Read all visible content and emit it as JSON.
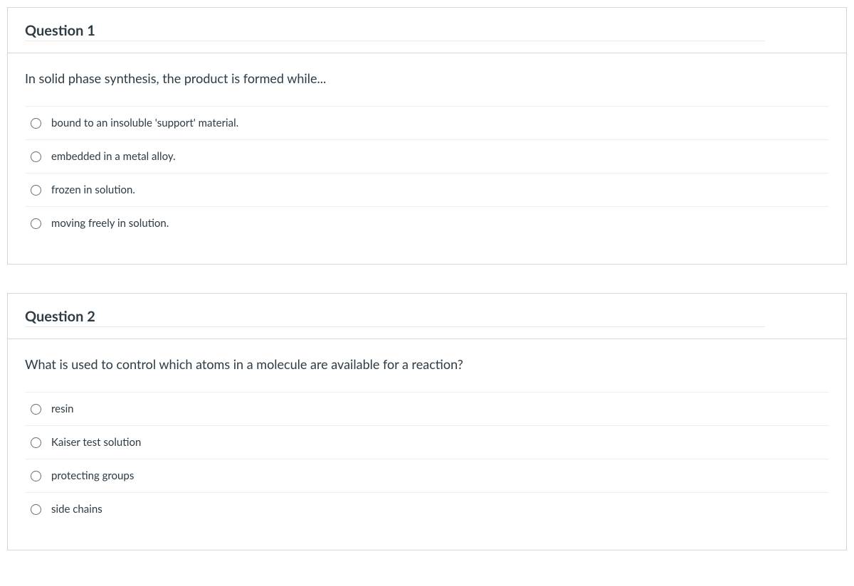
{
  "questions": [
    {
      "title": "Question 1",
      "prompt": "In solid phase synthesis, the product is formed while...",
      "options": [
        "bound to an insoluble 'support' material.",
        "embedded in a metal alloy.",
        "frozen in solution.",
        "moving freely in solution."
      ]
    },
    {
      "title": "Question 2",
      "prompt": "What is used to control which atoms in a molecule are available for a reaction?",
      "options": [
        "resin",
        "Kaiser test solution",
        "protecting groups",
        "side chains"
      ]
    }
  ]
}
